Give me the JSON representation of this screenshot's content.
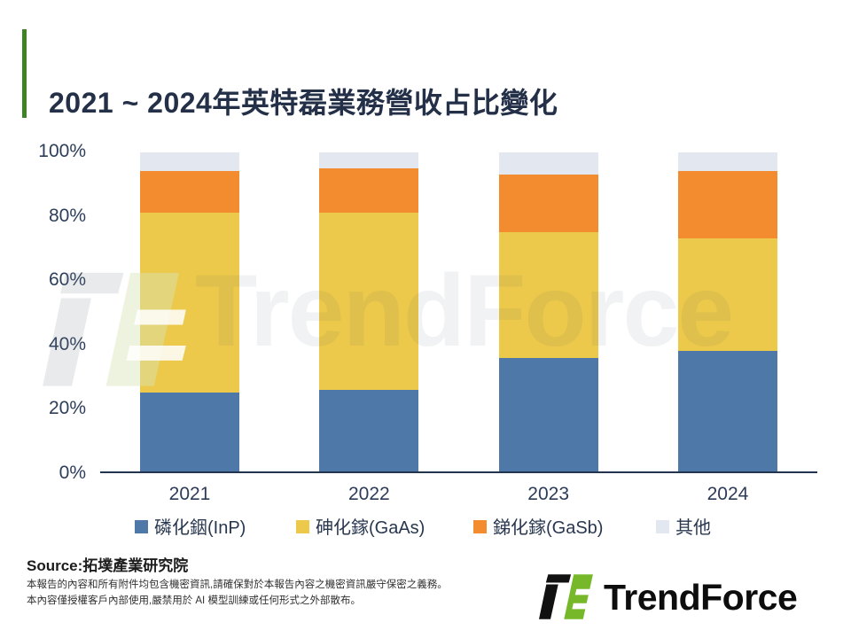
{
  "header": {
    "title": "2021 ~ 2024年英特磊業務營收占比變化",
    "accent_color": "#3f8327"
  },
  "chart_data": {
    "type": "bar",
    "stacked": true,
    "title": "2021 ~ 2024年英特磊業務營收占比變化",
    "unit": "%",
    "categories": [
      "2021",
      "2022",
      "2023",
      "2024"
    ],
    "series": [
      {
        "name": "磷化銦(InP)",
        "color": "#4d78a8",
        "values": [
          25,
          26,
          36,
          38
        ]
      },
      {
        "name": "砷化鎵(GaAs)",
        "color": "#ecc94a",
        "values": [
          56,
          55,
          39,
          35
        ]
      },
      {
        "name": "銻化鎵(GaSb)",
        "color": "#f28c2e",
        "values": [
          13,
          14,
          18,
          21
        ]
      },
      {
        "name": "其他",
        "color": "#e2e7f0",
        "values": [
          6,
          5,
          7,
          6
        ]
      }
    ],
    "ylim": [
      0,
      100
    ],
    "y_ticks": [
      "100%",
      "80%",
      "60%",
      "40%",
      "20%",
      "0%"
    ],
    "grid": false,
    "legend_position": "bottom",
    "axis_color": "#233450"
  },
  "watermark": {
    "text": "TrendForce"
  },
  "footer": {
    "source": "Source:拓墣產業研究院",
    "disclaimer_line1": "本報告的內容和所有附件均包含機密資訊,請確保對於本報告內容之機密資訊嚴守保密之義務。",
    "disclaimer_line2": "本內容僅授權客戶內部使用,嚴禁用於 AI 模型訓練或任何形式之外部散布。",
    "logo_text": "TrendForce"
  }
}
